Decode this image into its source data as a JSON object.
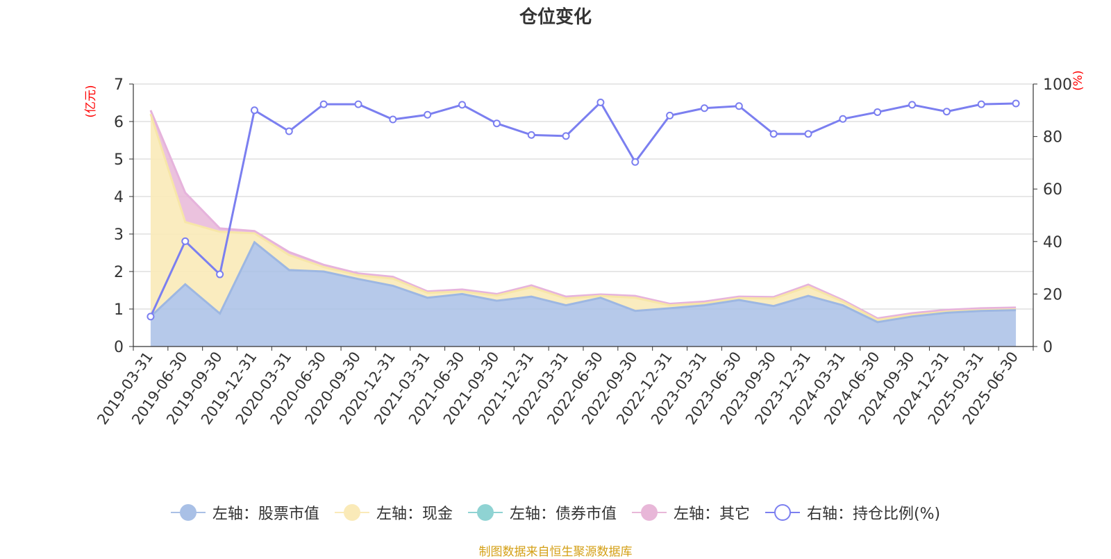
{
  "title": "仓位变化",
  "source_note": "制图数据来自恒生聚源数据库",
  "colors": {
    "stock": "#a9c0e6",
    "stock_line": "#9db7e2",
    "cash": "#faeab8",
    "cash_line": "#f7e6a8",
    "bond": "#8fd3d3",
    "other": "#e8b7d8",
    "other_line": "#e6b3dc",
    "ratio": "#7b7ff0",
    "axis_unit": "#ff0000"
  },
  "legend": [
    {
      "label": "左轴：股票市值",
      "key": "stock",
      "icon": "filled-circle-icon"
    },
    {
      "label": "左轴：现金",
      "key": "cash",
      "icon": "filled-circle-icon"
    },
    {
      "label": "左轴：债券市值",
      "key": "bond",
      "icon": "filled-circle-icon"
    },
    {
      "label": "左轴：其它",
      "key": "other",
      "icon": "filled-circle-icon"
    },
    {
      "label": "右轴：持仓比例(%)",
      "key": "ratio",
      "icon": "hollow-circle-icon"
    }
  ],
  "chart_data": {
    "type": "area",
    "title": "仓位变化",
    "y_left_unit": "(亿元)",
    "y_right_unit": "(%)",
    "y_left_range": [
      0,
      7
    ],
    "y_left_ticks": [
      "0",
      "1",
      "2",
      "3",
      "4",
      "5",
      "6",
      "7"
    ],
    "y_right_range": [
      0,
      100
    ],
    "y_right_ticks": [
      "0",
      "20",
      "40",
      "60",
      "80",
      "100"
    ],
    "grid": true,
    "stacked": true,
    "legend_position": "bottom",
    "x": [
      "2019-03-31",
      "2019-06-30",
      "2019-09-30",
      "2019-12-31",
      "2020-03-31",
      "2020-06-30",
      "2020-09-30",
      "2020-12-31",
      "2021-03-31",
      "2021-06-30",
      "2021-09-30",
      "2021-12-31",
      "2022-03-31",
      "2022-06-30",
      "2022-09-30",
      "2022-12-31",
      "2023-03-31",
      "2023-06-30",
      "2023-09-30",
      "2023-12-31",
      "2024-03-31",
      "2024-06-30",
      "2024-09-30",
      "2024-12-31",
      "2025-03-31",
      "2025-06-30"
    ],
    "series": [
      {
        "name": "左轴：股票市值",
        "axis": "left",
        "values": [
          0.8,
          1.66,
          0.88,
          2.78,
          2.04,
          2.0,
          1.8,
          1.62,
          1.3,
          1.4,
          1.22,
          1.33,
          1.1,
          1.3,
          0.95,
          1.02,
          1.1,
          1.24,
          1.08,
          1.35,
          1.1,
          0.65,
          0.8,
          0.9,
          0.95,
          0.97
        ]
      },
      {
        "name": "左轴：现金",
        "axis": "left",
        "values": [
          5.4,
          1.66,
          2.18,
          0.24,
          0.4,
          0.12,
          0.1,
          0.19,
          0.13,
          0.07,
          0.14,
          0.25,
          0.18,
          0.05,
          0.35,
          0.08,
          0.05,
          0.05,
          0.2,
          0.25,
          0.1,
          0.06,
          0.04,
          0.03,
          0.02,
          0.02
        ]
      },
      {
        "name": "左轴：债券市值",
        "axis": "left",
        "values": [
          0,
          0,
          0,
          0,
          0,
          0,
          0,
          0,
          0,
          0,
          0,
          0,
          0,
          0,
          0,
          0,
          0,
          0,
          0,
          0,
          0,
          0,
          0,
          0,
          0,
          0
        ]
      },
      {
        "name": "左轴：其它",
        "axis": "left",
        "values": [
          0.1,
          0.78,
          0.09,
          0.06,
          0.08,
          0.06,
          0.05,
          0.05,
          0.04,
          0.05,
          0.04,
          0.05,
          0.05,
          0.04,
          0.05,
          0.04,
          0.05,
          0.04,
          0.04,
          0.05,
          0.04,
          0.04,
          0.05,
          0.05,
          0.05,
          0.05
        ]
      },
      {
        "name": "右轴：持仓比例(%)",
        "axis": "right",
        "values": [
          11.4,
          40.1,
          27.5,
          90.0,
          82.0,
          92.3,
          92.3,
          86.5,
          88.3,
          92.1,
          85.0,
          80.6,
          80.2,
          93.0,
          70.3,
          88.0,
          90.8,
          91.6,
          81.0,
          81.0,
          86.7,
          89.3,
          92.1,
          89.5,
          92.3,
          92.6
        ]
      }
    ]
  }
}
